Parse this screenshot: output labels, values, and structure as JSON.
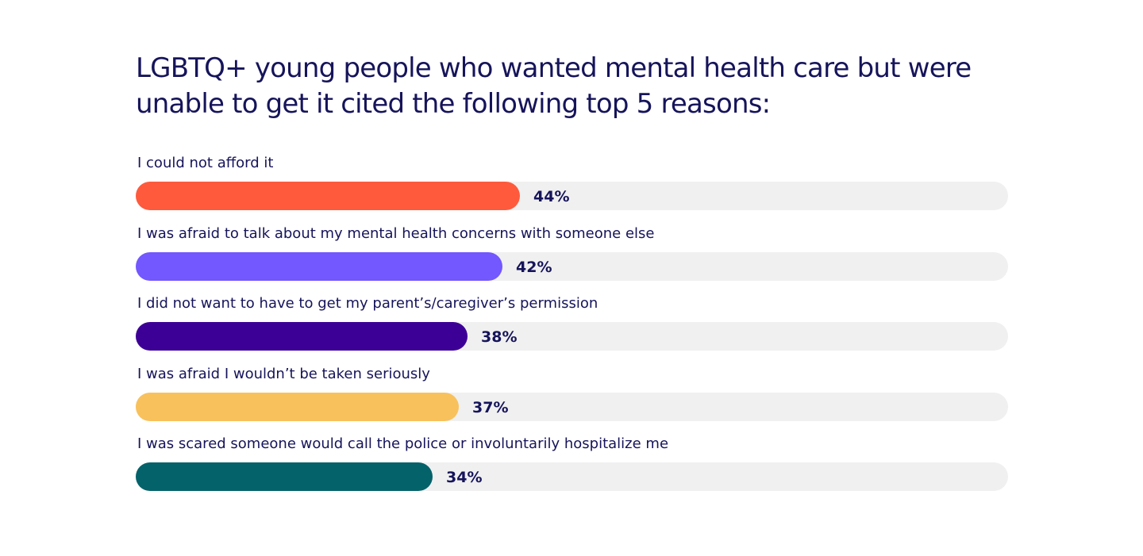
{
  "chart_data": {
    "type": "bar",
    "orientation": "horizontal",
    "title": "LGBTQ+ young people who wanted mental health care but were unable to get it cited the following top 5 reasons:",
    "xlabel": "",
    "ylabel": "",
    "xlim": [
      0,
      100
    ],
    "grid": false,
    "legend": "none",
    "value_suffix": "%",
    "categories": [
      "I could not afford it",
      "I was afraid to talk about my mental health concerns with someone else",
      "I did not want to have to get my parent’s/caregiver’s permission",
      "I was afraid I wouldn’t be taken seriously",
      "I was scared someone would call the police or involuntarily hospitalize me"
    ],
    "values": [
      44,
      42,
      38,
      37,
      34
    ],
    "value_labels": [
      "44%",
      "42%",
      "38%",
      "37%",
      "34%"
    ],
    "colors": [
      "#ff5a3c",
      "#7357ff",
      "#3d0096",
      "#f8c15c",
      "#04626a"
    ],
    "track_color": "#f0f0f0"
  }
}
